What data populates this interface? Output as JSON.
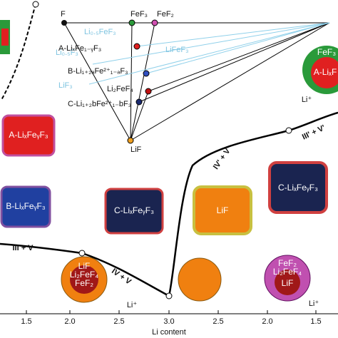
{
  "axis": {
    "label": "Li content",
    "ticks": [
      "1.5",
      "2.0",
      "2.5",
      "3.0",
      "2.5",
      "2.0",
      "1.5"
    ]
  },
  "ternary": {
    "labels": [
      "F",
      "FeF₃",
      "FeF₂",
      "Li₀.₅FeF₃",
      "Li₀.₅F₃",
      "LiFeF₃",
      "A-LiₓFe₁₋ᵧF₃",
      "B-Li₁₊₂ₐFe²⁺₁₋ₐF₃",
      "LiF₃",
      "Li₂FeF₄",
      "C-Li₁₊₂bFe²⁺₁₋bF₃",
      "LiF"
    ]
  },
  "particles": [
    "A-LiₓFeᵧF₃",
    "B-LiₓFeᵧF₃",
    "C-LiₓFeᵧF₃",
    "LiF",
    "C-LiₓFeᵧF₃"
  ],
  "phases": [
    "III + V",
    "IV + V",
    "IV' + V'",
    "III' + V'"
  ],
  "insets": {
    "right": [
      "FeF₃",
      "A-LiₓF",
      "Li⁺"
    ],
    "left": [
      "LiF",
      "Li₂FeF₄",
      "FeF₂",
      "Li⁺"
    ],
    "bottom_right": [
      "FeF₂",
      "Li₂FeF₄",
      "LiF",
      "Li⁺"
    ]
  }
}
